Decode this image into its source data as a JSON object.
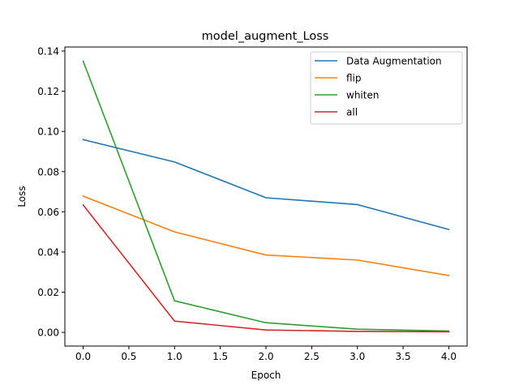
{
  "chart_data": {
    "type": "line",
    "title": "model_augment_Loss",
    "xlabel": "Epoch",
    "ylabel": "Loss",
    "x": [
      0,
      1,
      2,
      3,
      4
    ],
    "xlim": [
      -0.2,
      4.2
    ],
    "ylim": [
      -0.0068,
      0.142
    ],
    "xticks": [
      0.0,
      0.5,
      1.0,
      1.5,
      2.0,
      2.5,
      3.0,
      3.5,
      4.0
    ],
    "xtick_labels": [
      "0.0",
      "0.5",
      "1.0",
      "1.5",
      "2.0",
      "2.5",
      "3.0",
      "3.5",
      "4.0"
    ],
    "yticks": [
      0.0,
      0.02,
      0.04,
      0.06,
      0.08,
      0.1,
      0.12,
      0.14
    ],
    "ytick_labels": [
      "0.00",
      "0.02",
      "0.04",
      "0.06",
      "0.08",
      "0.10",
      "0.12",
      "0.14"
    ],
    "grid": false,
    "legend_position": "top-right",
    "series": [
      {
        "name": "Data Augmentation",
        "color": "#1f77b4",
        "values": [
          0.0959,
          0.0848,
          0.067,
          0.0636,
          0.0512
        ]
      },
      {
        "name": "flip",
        "color": "#ff7f0e",
        "values": [
          0.0678,
          0.05,
          0.0385,
          0.036,
          0.0283
        ]
      },
      {
        "name": "whiten",
        "color": "#2ca02c",
        "values": [
          0.135,
          0.0157,
          0.0048,
          0.0016,
          0.0007
        ]
      },
      {
        "name": "all",
        "color": "#d62728",
        "values": [
          0.0634,
          0.0056,
          0.0012,
          0.0005,
          0.0003
        ]
      }
    ]
  }
}
